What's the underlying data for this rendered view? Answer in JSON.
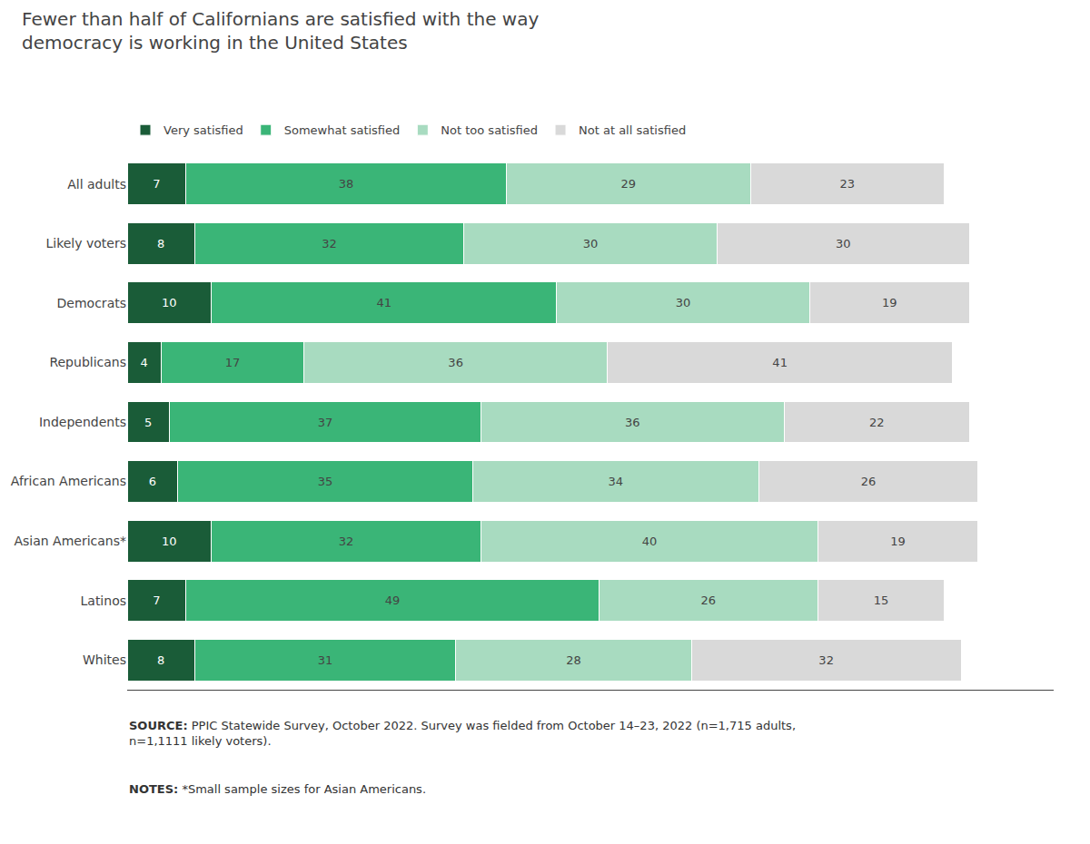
{
  "chart_data": {
    "type": "bar",
    "orientation": "horizontal",
    "stacked": true,
    "title": "Fewer than half of Californians are satisfied with the way\ndemocracy is working in the United States",
    "categories": [
      "All adults",
      "Likely voters",
      "Democrats",
      "Republicans",
      "Independents",
      "African Americans",
      "Asian Americans*",
      "Latinos",
      "Whites"
    ],
    "series": [
      {
        "name": "Very satisfied",
        "color": "#1a5c38",
        "values": [
          7,
          8,
          10,
          4,
          5,
          6,
          10,
          7,
          8
        ]
      },
      {
        "name": "Somewhat satisfied",
        "color": "#3ab577",
        "values": [
          38,
          32,
          41,
          17,
          37,
          35,
          32,
          49,
          31
        ]
      },
      {
        "name": "Not too satisfied",
        "color": "#a8dbc0",
        "values": [
          29,
          30,
          30,
          36,
          36,
          34,
          40,
          26,
          28
        ]
      },
      {
        "name": "Not at all satisfied",
        "color": "#d9d9d9",
        "values": [
          23,
          30,
          19,
          41,
          22,
          26,
          19,
          15,
          32
        ]
      }
    ],
    "xlim": [
      0,
      110
    ],
    "data_labels": true,
    "tick_labels": "y",
    "grid": false,
    "legend": "upper left",
    "annotations": [
      "SOURCE: PPIC Statewide Survey, October 2022. Survey was fielded from October 14–23, 2022 (n=1,715 adults,\nn=1,1111 likely voters).",
      "NOTES: *Small sample sizes for Asian Americans."
    ]
  }
}
